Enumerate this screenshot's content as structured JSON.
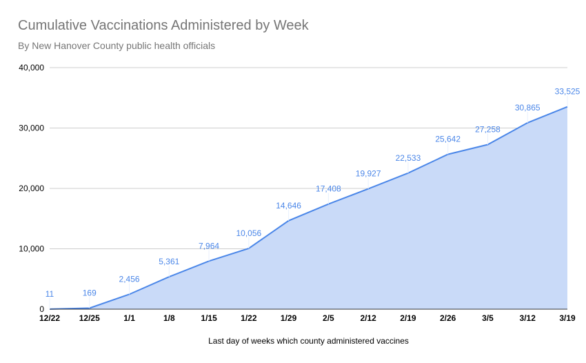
{
  "chart_data": {
    "type": "area",
    "title": "Cumulative Vaccinations Administered by Week",
    "subtitle": "By New Hanover County public health officials",
    "xlabel": "Last day of weeks which county administered vaccines",
    "ylabel": "",
    "categories": [
      "12/22",
      "12/25",
      "1/1",
      "1/8",
      "1/15",
      "1/22",
      "1/29",
      "2/5",
      "2/12",
      "2/19",
      "2/26",
      "3/5",
      "3/12",
      "3/19"
    ],
    "values": [
      11,
      169,
      2456,
      5361,
      7964,
      10056,
      14646,
      17408,
      19927,
      22533,
      25642,
      27258,
      30865,
      33525
    ],
    "data_labels": [
      "11",
      "169",
      "2,456",
      "5,361",
      "7,964",
      "10,056",
      "14,646",
      "17,408",
      "19,927",
      "22,533",
      "25,642",
      "27,258",
      "30,865",
      "33,525"
    ],
    "yticks": [
      0,
      10000,
      20000,
      30000,
      40000
    ],
    "ytick_labels": [
      "0",
      "10,000",
      "20,000",
      "30,000",
      "40,000"
    ],
    "ylim": [
      0,
      40000
    ],
    "grid": true,
    "legend": "none",
    "colors": {
      "line": "#4a86e8",
      "fill": "#c9daf8",
      "grid": "#cccccc",
      "text": "#757575"
    }
  }
}
